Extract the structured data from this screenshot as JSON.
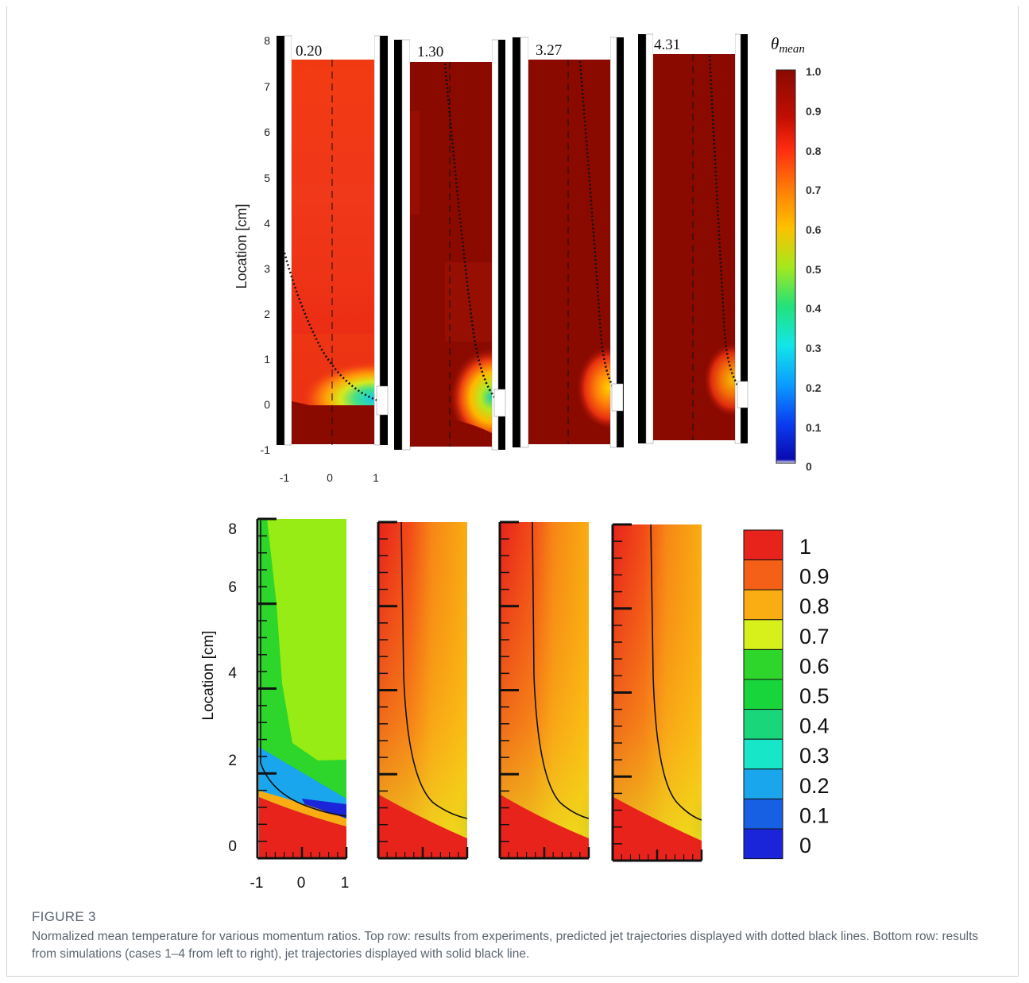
{
  "figure": {
    "label": "FIGURE 3",
    "caption": "Normalized mean temperature for various momentum ratios. Top row: results from experiments, predicted jet trajectories displayed with dotted black lines. Bottom row: results from simulations (cases 1–4 from left to right), jet trajectories displayed with solid black line."
  },
  "top_row": {
    "ylabel": "Location [cm]",
    "y_ticks": [
      "8",
      "7",
      "6",
      "5",
      "4",
      "3",
      "2",
      "1",
      "0",
      "-1"
    ],
    "x_ticks": [
      "-1",
      "0",
      "1"
    ],
    "panels": [
      {
        "label": "0.20",
        "theta_background": 0.84,
        "jet_theta_min": 0.27
      },
      {
        "label": "1.30",
        "theta_background": 0.97,
        "jet_theta_min": 0.45
      },
      {
        "label": "3.27",
        "theta_background": 0.97,
        "jet_theta_min": 0.55
      },
      {
        "label": "4.31",
        "theta_background": 0.97,
        "jet_theta_min": 0.62
      }
    ],
    "colorbar": {
      "title": "θmean",
      "ticks": [
        "1.0",
        "0.9",
        "0.8",
        "0.7",
        "0.6",
        "0.5",
        "0.4",
        "0.3",
        "0.2",
        "0.1",
        "0"
      ]
    }
  },
  "bottom_row": {
    "ylabel": "Location [cm]",
    "y_ticks": [
      "8",
      "6",
      "4",
      "2",
      "0"
    ],
    "x_ticks": [
      "-1",
      "0",
      "1"
    ],
    "colorbar": {
      "ticks": [
        "1",
        "0.9",
        "0.8",
        "0.7",
        "0.6",
        "0.5",
        "0.4",
        "0.3",
        "0.2",
        "0.1",
        "0"
      ],
      "colors": [
        "#e8231c",
        "#f56018",
        "#f9ad12",
        "#d7f01c",
        "#2ed52a",
        "#18d53b",
        "#1ad67a",
        "#18e6c8",
        "#1aa6ec",
        "#1760e4",
        "#1a24d8"
      ]
    }
  },
  "colors": {
    "exp_dark_red": "#8b0a00",
    "exp_red": "#ec2a14",
    "sim_red": "#e8231c",
    "sim_orange": "#f9ad12",
    "sim_green": "#96ec14",
    "caption_gray": "#5b6570"
  }
}
